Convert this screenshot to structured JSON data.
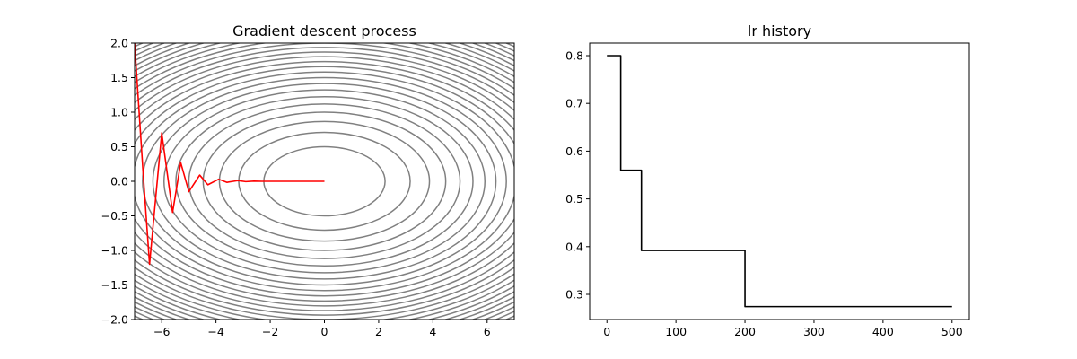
{
  "chart_data": [
    {
      "type": "line",
      "title": "Gradient descent process",
      "xlabel": "",
      "ylabel": "",
      "xlim": [
        -7,
        7
      ],
      "ylim": [
        -2,
        2
      ],
      "x_ticks": [
        -6,
        -4,
        -2,
        0,
        2,
        4,
        6
      ],
      "x_tick_labels": [
        "−6",
        "−4",
        "−2",
        "0",
        "2",
        "4",
        "6"
      ],
      "y_ticks": [
        -2.0,
        -1.5,
        -1.0,
        -0.5,
        0.0,
        0.5,
        1.0,
        1.5,
        2.0
      ],
      "y_tick_labels": [
        "−2.0",
        "−1.5",
        "−1.0",
        "−0.5",
        "0.0",
        "0.5",
        "1.0",
        "1.5",
        "2.0"
      ],
      "grid": false,
      "contour": {
        "function": "x^2/20 + y^2",
        "levels": [
          0.25,
          0.5,
          0.75,
          1.0,
          1.25,
          1.5,
          1.75,
          2.0,
          2.25,
          2.5,
          2.75,
          3.0,
          3.25,
          3.5,
          3.75,
          4.0,
          4.25,
          4.5,
          4.75,
          5.0,
          5.25,
          5.5,
          5.75,
          6.0,
          6.25,
          6.5
        ],
        "color": "#808080"
      },
      "series": [
        {
          "color": "#ff0000",
          "x": [
            -7.0,
            -6.7,
            -6.45,
            -6.0,
            -5.6,
            -5.3,
            -5.0,
            -4.6,
            -4.3,
            -3.9,
            -3.6,
            -3.2,
            -2.9,
            -2.6,
            -2.3,
            -2.0,
            -1.6,
            -1.2,
            -0.8,
            -0.4,
            0.0
          ],
          "y": [
            2.0,
            0.2,
            -1.2,
            0.7,
            -0.45,
            0.27,
            -0.15,
            0.09,
            -0.05,
            0.03,
            -0.015,
            0.01,
            -0.005,
            0.003,
            0.0,
            0.0,
            0.0,
            0.0,
            0.0,
            0.0,
            0.0
          ]
        }
      ]
    },
    {
      "type": "line",
      "title": "lr history",
      "xlabel": "",
      "ylabel": "",
      "xlim": [
        -25,
        525
      ],
      "ylim": [
        0.2474,
        0.8263
      ],
      "x_ticks": [
        0,
        100,
        200,
        300,
        400,
        500
      ],
      "x_tick_labels": [
        "0",
        "100",
        "200",
        "300",
        "400",
        "500"
      ],
      "y_ticks": [
        0.3,
        0.4,
        0.5,
        0.6,
        0.7,
        0.8
      ],
      "y_tick_labels": [
        "0.3",
        "0.4",
        "0.5",
        "0.6",
        "0.7",
        "0.8"
      ],
      "grid": false,
      "series": [
        {
          "color": "#000000",
          "x": [
            0,
            20,
            20,
            50,
            50,
            200,
            200,
            500
          ],
          "y": [
            0.8,
            0.8,
            0.56,
            0.56,
            0.392,
            0.392,
            0.2744,
            0.2744
          ]
        }
      ]
    }
  ]
}
